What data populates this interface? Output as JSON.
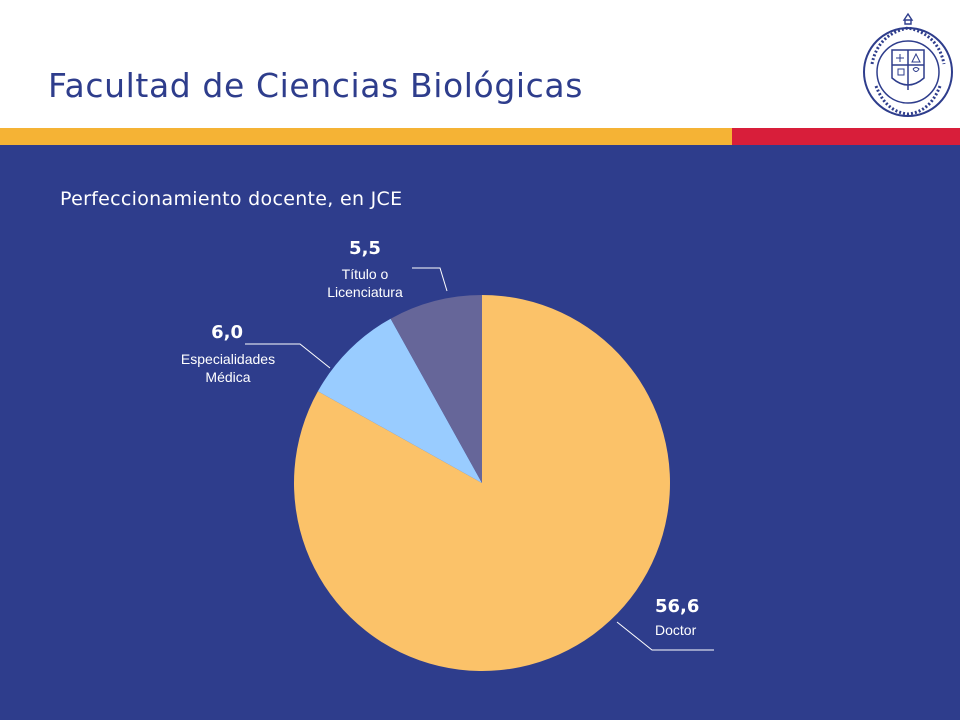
{
  "colors": {
    "background": "#2e3d8c",
    "title": "#2e3d8c",
    "band_left": "#f5b335",
    "band_right": "#d81e3a",
    "leader_line": "#ffffff"
  },
  "header": {
    "title": "Facultad de Ciencias Biológicas",
    "logo_icon": "university-seal-icon",
    "logo_text": "PONTIFICIA UNIVERSIDAD CATOLICA DE CHILE"
  },
  "chart_data": {
    "type": "pie",
    "title": "Perfeccionamiento docente, en JCE",
    "slices": [
      {
        "label": "Doctor",
        "value": 56.6,
        "value_label": "56,6",
        "color": "#fbc269"
      },
      {
        "label": "Especialidades Médica",
        "label_lines": [
          "Especialidades",
          "Médica"
        ],
        "value": 6.0,
        "value_label": "6,0",
        "color": "#99ccff"
      },
      {
        "label": "Título o Licenciatura",
        "label_lines": [
          "Título o",
          "Licenciatura"
        ],
        "value": 5.5,
        "value_label": "5,5",
        "color": "#666699"
      }
    ],
    "legend": "none",
    "start": "top, clockwise"
  }
}
